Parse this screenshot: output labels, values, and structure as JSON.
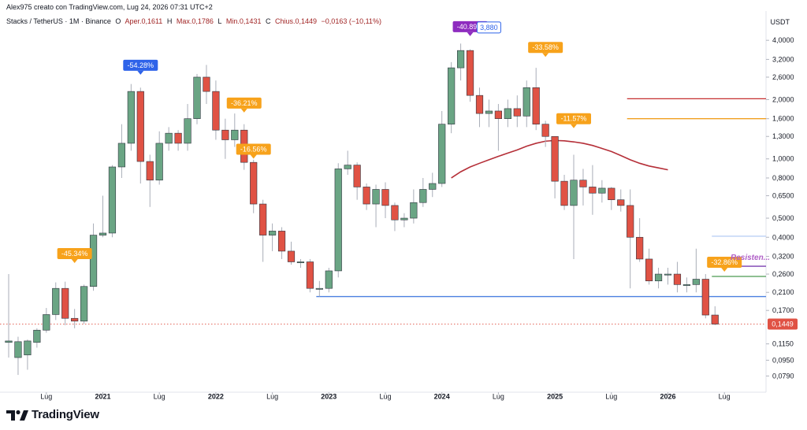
{
  "header": {
    "creator": "Alex975 creato con TradingView.com, Lug 24, 2026 07:31 UTC+2",
    "symbol": "Stacks / TetherUS · 1M · Binance",
    "open_label": "O",
    "open_value": "Aper.0,1611",
    "high_label": "H",
    "high_value": "Max.0,1786",
    "low_label": "L",
    "low_value": "Min.0,1431",
    "close_label": "C",
    "close_value": "Chius.0,1449",
    "change_value": "−0,0163 (−10,11%)"
  },
  "currency": "USDT",
  "brand": {
    "name": "TradingView"
  },
  "colors": {
    "up": "#6aa584",
    "down": "#e05244",
    "ma": "#b52f38",
    "support": "#4a7fe0",
    "resistance_red": "#c62f2f",
    "resistance_orange": "#f0a020",
    "resistance_purple": "#7a3fb0",
    "resistance_green": "#4a9a50",
    "resistance_faint": "#bcd0f5",
    "badge_blue": "#2e63e9",
    "badge_orange": "#f7a21b",
    "badge_purple": "#8e2cbf",
    "price_label": "#e05244"
  },
  "chart_data": {
    "type": "candlestick",
    "interval": "1M",
    "y_scale": "log",
    "ylim": [
      0.073,
      4.6
    ],
    "y_ticks": [
      "4,0000",
      "3,2000",
      "2,6000",
      "2,0000",
      "1,6000",
      "1,3000",
      "1,0000",
      "0,8000",
      "0,6500",
      "0,5000",
      "0,4000",
      "0,3200",
      "0,2600",
      "0,2100",
      "0,1700",
      "0,1150",
      "0,0950",
      "0,0790"
    ],
    "x_labels": [
      {
        "text": "Lug",
        "i": 4
      },
      {
        "text": "2021",
        "i": 10
      },
      {
        "text": "Lug",
        "i": 16
      },
      {
        "text": "2022",
        "i": 22
      },
      {
        "text": "Lug",
        "i": 28
      },
      {
        "text": "2023",
        "i": 34
      },
      {
        "text": "Lug",
        "i": 40
      },
      {
        "text": "2024",
        "i": 46
      },
      {
        "text": "Lug",
        "i": 52
      },
      {
        "text": "2025",
        "i": 58
      },
      {
        "text": "Lug",
        "i": 64
      },
      {
        "text": "2026",
        "i": 70
      },
      {
        "text": "Lug",
        "i": 76
      }
    ],
    "ohlc": [
      [
        0.117,
        0.119,
        0.26,
        0.098
      ],
      [
        0.098,
        0.118,
        0.125,
        0.08
      ],
      [
        0.101,
        0.119,
        0.121,
        0.085
      ],
      [
        0.117,
        0.135,
        0.138,
        0.11
      ],
      [
        0.135,
        0.162,
        0.175,
        0.131
      ],
      [
        0.162,
        0.22,
        0.236,
        0.152
      ],
      [
        0.22,
        0.155,
        0.238,
        0.143
      ],
      [
        0.155,
        0.15,
        0.173,
        0.138
      ],
      [
        0.15,
        0.225,
        0.23,
        0.145
      ],
      [
        0.225,
        0.41,
        0.47,
        0.214
      ],
      [
        0.41,
        0.42,
        0.65,
        0.4
      ],
      [
        0.42,
        0.91,
        0.93,
        0.4
      ],
      [
        0.91,
        1.2,
        1.5,
        0.8
      ],
      [
        1.2,
        2.2,
        2.4,
        1.1
      ],
      [
        2.2,
        0.97,
        2.3,
        0.75
      ],
      [
        0.97,
        0.78,
        1.05,
        0.57
      ],
      [
        0.78,
        1.2,
        1.38,
        0.74
      ],
      [
        1.2,
        1.35,
        1.45,
        1.1
      ],
      [
        1.35,
        1.2,
        1.4,
        1.1
      ],
      [
        1.2,
        1.6,
        1.9,
        1.1
      ],
      [
        1.6,
        2.6,
        2.7,
        1.5
      ],
      [
        2.6,
        2.2,
        3.0,
        1.9
      ],
      [
        2.2,
        1.4,
        2.5,
        1.25
      ],
      [
        1.4,
        1.25,
        1.6,
        1.0
      ],
      [
        1.25,
        1.4,
        1.7,
        1.15
      ],
      [
        1.4,
        0.96,
        1.5,
        0.88
      ],
      [
        0.96,
        0.59,
        0.99,
        0.53
      ],
      [
        0.59,
        0.41,
        0.62,
        0.3
      ],
      [
        0.41,
        0.43,
        0.47,
        0.34
      ],
      [
        0.43,
        0.34,
        0.45,
        0.31
      ],
      [
        0.34,
        0.3,
        0.38,
        0.29
      ],
      [
        0.3,
        0.3,
        0.31,
        0.28
      ],
      [
        0.3,
        0.22,
        0.31,
        0.21
      ],
      [
        0.22,
        0.22,
        0.24,
        0.2
      ],
      [
        0.22,
        0.27,
        0.28,
        0.21
      ],
      [
        0.27,
        0.89,
        0.95,
        0.25
      ],
      [
        0.89,
        0.93,
        1.1,
        0.83
      ],
      [
        0.93,
        0.72,
        0.96,
        0.62
      ],
      [
        0.72,
        0.59,
        0.75,
        0.55
      ],
      [
        0.59,
        0.7,
        0.74,
        0.45
      ],
      [
        0.7,
        0.58,
        0.76,
        0.5
      ],
      [
        0.58,
        0.49,
        0.6,
        0.43
      ],
      [
        0.49,
        0.5,
        0.53,
        0.45
      ],
      [
        0.5,
        0.6,
        0.7,
        0.47
      ],
      [
        0.6,
        0.7,
        0.8,
        0.57
      ],
      [
        0.7,
        0.75,
        0.85,
        0.64
      ],
      [
        0.75,
        1.5,
        1.75,
        0.72
      ],
      [
        1.5,
        2.9,
        3.1,
        1.35
      ],
      [
        2.9,
        3.55,
        3.85,
        2.5
      ],
      [
        3.55,
        2.1,
        3.6,
        1.95
      ],
      [
        2.1,
        1.7,
        2.3,
        1.45
      ],
      [
        1.7,
        1.75,
        2.0,
        1.45
      ],
      [
        1.75,
        1.6,
        1.9,
        1.1
      ],
      [
        1.6,
        1.8,
        2.0,
        1.45
      ],
      [
        1.8,
        1.65,
        2.1,
        1.45
      ],
      [
        1.65,
        2.3,
        2.5,
        1.45
      ],
      [
        2.3,
        1.5,
        2.9,
        1.4
      ],
      [
        1.5,
        1.3,
        1.56,
        1.15
      ],
      [
        1.3,
        0.77,
        1.3,
        0.63
      ],
      [
        0.77,
        0.58,
        0.83,
        0.55
      ],
      [
        0.58,
        0.78,
        1.05,
        0.31
      ],
      [
        0.78,
        0.72,
        0.89,
        0.58
      ],
      [
        0.72,
        0.67,
        0.93,
        0.52
      ],
      [
        0.67,
        0.71,
        0.78,
        0.6
      ],
      [
        0.71,
        0.62,
        0.72,
        0.55
      ],
      [
        0.62,
        0.58,
        0.7,
        0.54
      ],
      [
        0.58,
        0.4,
        0.7,
        0.22
      ],
      [
        0.4,
        0.31,
        0.5,
        0.3
      ],
      [
        0.31,
        0.24,
        0.35,
        0.23
      ],
      [
        0.24,
        0.26,
        0.28,
        0.22
      ],
      [
        0.26,
        0.26,
        0.28,
        0.23
      ],
      [
        0.26,
        0.23,
        0.3,
        0.21
      ],
      [
        0.23,
        0.23,
        0.25,
        0.21
      ],
      [
        0.23,
        0.245,
        0.35,
        0.21
      ],
      [
        0.245,
        0.1611,
        0.26,
        0.155
      ],
      [
        0.1611,
        0.1449,
        0.1786,
        0.1431
      ]
    ],
    "moving_average": [
      {
        "i": 47,
        "v": 0.8
      },
      {
        "i": 48,
        "v": 0.86
      },
      {
        "i": 49,
        "v": 0.91
      },
      {
        "i": 50,
        "v": 0.95
      },
      {
        "i": 51,
        "v": 0.99
      },
      {
        "i": 52,
        "v": 1.03
      },
      {
        "i": 53,
        "v": 1.07
      },
      {
        "i": 54,
        "v": 1.11
      },
      {
        "i": 55,
        "v": 1.16
      },
      {
        "i": 56,
        "v": 1.2
      },
      {
        "i": 57,
        "v": 1.23
      },
      {
        "i": 58,
        "v": 1.24
      },
      {
        "i": 59,
        "v": 1.235
      },
      {
        "i": 60,
        "v": 1.22
      },
      {
        "i": 61,
        "v": 1.2
      },
      {
        "i": 62,
        "v": 1.17
      },
      {
        "i": 63,
        "v": 1.13
      },
      {
        "i": 64,
        "v": 1.09
      },
      {
        "i": 65,
        "v": 1.04
      },
      {
        "i": 66,
        "v": 0.99
      },
      {
        "i": 67,
        "v": 0.95
      },
      {
        "i": 68,
        "v": 0.92
      },
      {
        "i": 69,
        "v": 0.9
      },
      {
        "i": 70,
        "v": 0.88
      }
    ],
    "levels": [
      {
        "name": "support",
        "price": 0.2,
        "from_i": 33,
        "to": "end",
        "color": "support"
      },
      {
        "name": "resistance-red",
        "price": 2.02,
        "from_i": 66,
        "to": "end",
        "color": "resistance_red"
      },
      {
        "name": "resistance-orange",
        "price": 1.6,
        "from_i": 66,
        "to": "end",
        "color": "resistance_orange"
      },
      {
        "name": "resistance-faint",
        "price": 0.405,
        "from_i": 75,
        "to": "end",
        "color": "resistance_faint"
      },
      {
        "name": "resistance-purple",
        "price": 0.285,
        "from_i": 75,
        "to": "end",
        "color": "resistance_purple"
      },
      {
        "name": "resistance-green",
        "price": 0.253,
        "from_i": 75,
        "to": "end",
        "color": "resistance_green"
      }
    ],
    "annotations": [
      {
        "text": "-54.28%",
        "i": 14,
        "price": 2.8,
        "color": "badge_blue",
        "dir": "down"
      },
      {
        "text": "-36.21%",
        "i": 25,
        "price": 1.8,
        "color": "badge_orange",
        "dir": "down"
      },
      {
        "text": "-16.56%",
        "i": 26,
        "price": 1.05,
        "color": "badge_orange",
        "dir": "down"
      },
      {
        "text": "-45.34%",
        "i": 7,
        "price": 0.31,
        "color": "badge_orange",
        "dir": "down"
      },
      {
        "text": "-40.89%",
        "i": 49,
        "price": 4.4,
        "color": "badge_purple",
        "dir": "down"
      },
      {
        "text": "-33.58%",
        "i": 57,
        "price": 3.45,
        "color": "badge_orange",
        "dir": "down"
      },
      {
        "text": "-11.57%",
        "i": 60,
        "price": 1.5,
        "color": "badge_orange",
        "dir": "down"
      },
      {
        "text": "-32.86%",
        "i": 76,
        "price": 0.28,
        "color": "badge_orange",
        "dir": "down"
      }
    ],
    "text_labels": [
      {
        "text": "3,880",
        "i": 52,
        "price": 4.4,
        "kind": "boxed"
      },
      {
        "text": "Resisten...",
        "i": 80,
        "price": 0.315,
        "kind": "italic"
      }
    ],
    "last_price": {
      "text": "0,1449",
      "price": 0.1449
    }
  }
}
